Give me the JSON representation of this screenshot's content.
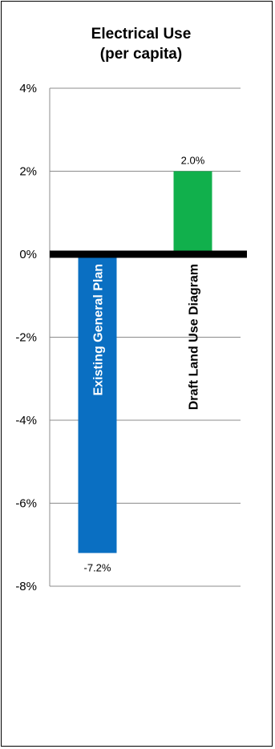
{
  "chart_data": {
    "type": "bar",
    "title": "Electrical Use",
    "subtitle": "(per capita)",
    "categories": [
      "Existing General Plan",
      "Draft Land Use Diagram"
    ],
    "values": [
      -7.2,
      2.0
    ],
    "data_labels": [
      "-7.2%",
      "2.0%"
    ],
    "colors": [
      "#0a6fc2",
      "#11b04c"
    ],
    "category_label_colors": [
      "#ffffff",
      "#000000"
    ],
    "ylim": [
      -8,
      4
    ],
    "yticks": [
      4,
      2,
      0,
      -2,
      -4,
      -6,
      -8
    ],
    "ytick_labels": [
      "4%",
      "2%",
      "0%",
      "-2%",
      "-4%",
      "-6%",
      "-8%"
    ],
    "grid": true,
    "legend": "none",
    "zero_line_color": "#000000",
    "grid_color": "#8c8c8c"
  }
}
